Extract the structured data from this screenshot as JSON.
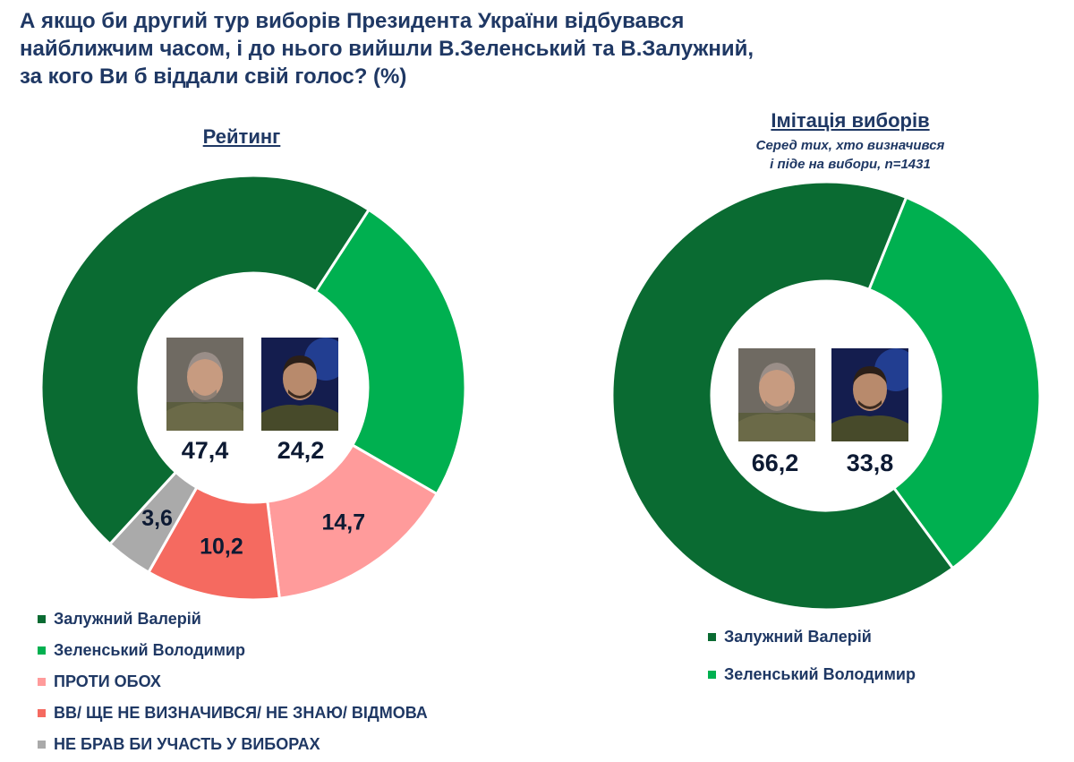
{
  "title_lines": [
    "А якщо би другий тур виборів Президента України відбувався",
    "найближчим часом, і до нього вийшли В.Зеленський та В.Залужний,",
    "за кого Ви б віддали свій голос? (%)"
  ],
  "chart_data": [
    {
      "type": "pie",
      "title": "Рейтинг",
      "categories": [
        "Залужний Валерій",
        "Зеленський Володимир",
        "ПРОТИ ОБОХ",
        "ВВ/ ЩЕ НЕ ВИЗНАЧИВСЯ/ НЕ ЗНАЮ/ ВІДМОВА",
        "НЕ БРАВ БИ УЧАСТЬ У ВИБОРАХ"
      ],
      "values": [
        47.4,
        24.2,
        14.7,
        10.2,
        3.6
      ],
      "value_labels": [
        "47,4",
        "24,2",
        "14,7",
        "10,2",
        "3,6"
      ],
      "colors": [
        "#0a6b32",
        "#00b050",
        "#ff9b9b",
        "#f56a60",
        "#aaaaaa"
      ],
      "legend_position": "bottom-left"
    },
    {
      "type": "pie",
      "title": "Імітація виборів",
      "subtitle_lines": [
        "Серед тих, хто визначився",
        "і піде на вибори, n=1431"
      ],
      "categories": [
        "Залужний Валерій",
        "Зеленський Володимир"
      ],
      "values": [
        66.2,
        33.8
      ],
      "value_labels": [
        "66,2",
        "33,8"
      ],
      "colors": [
        "#0a6b32",
        "#00b050"
      ],
      "legend_position": "bottom-right"
    }
  ],
  "icons": [
    "zaluzhnyi-portrait",
    "zelenskyi-portrait"
  ]
}
